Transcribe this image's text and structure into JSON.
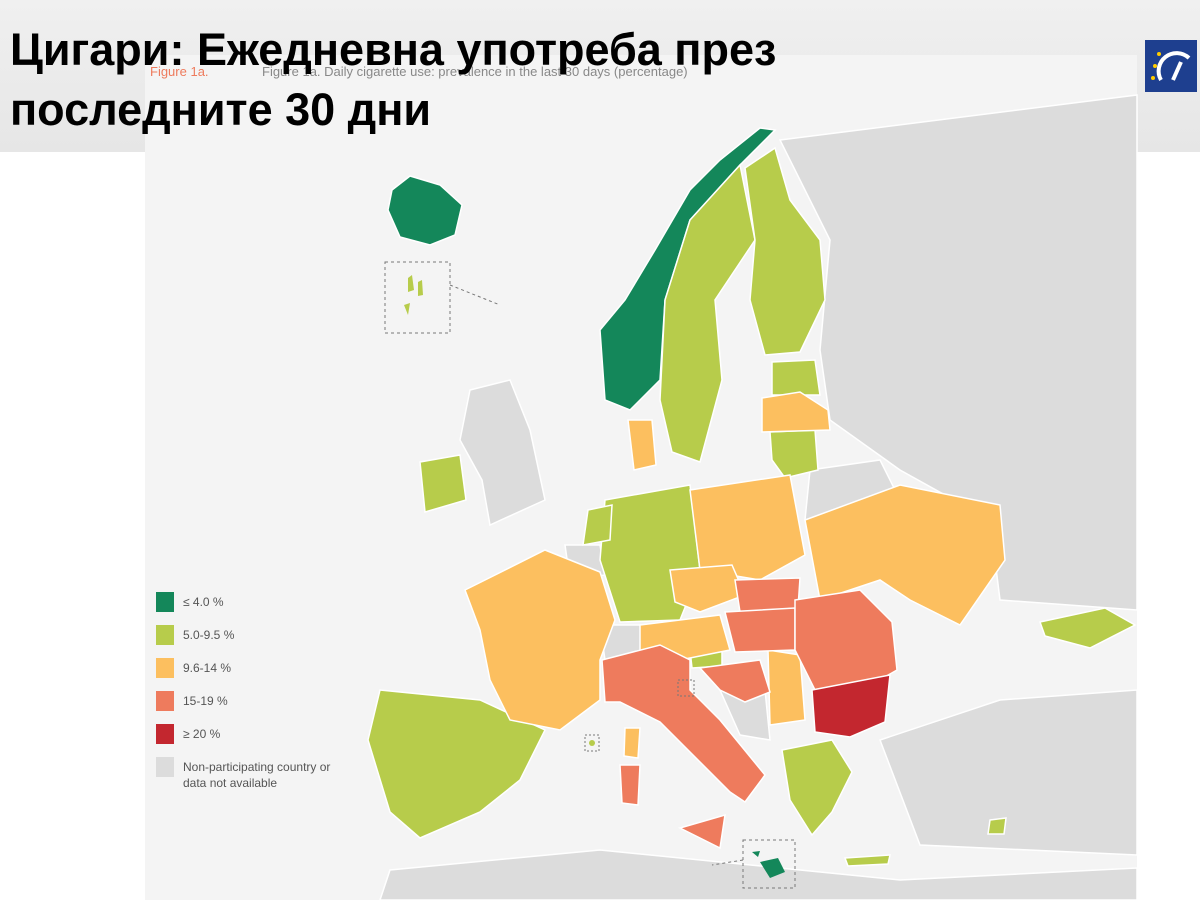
{
  "header": {
    "title_lines": [
      "Цигари: Ежедневна употреба през",
      "последните 30 дни"
    ]
  },
  "figure": {
    "label": "Figure 1a.",
    "caption": "Figure 1a. Daily cigarette use: prevalence in the last 30 days (percentage)"
  },
  "legend": {
    "items": [
      {
        "label": "≤ 4.0 %",
        "color": "#14875a"
      },
      {
        "label": "5.0-9.5 %",
        "color": "#b7cc4b"
      },
      {
        "label": "9.6-14 %",
        "color": "#fcbf5f"
      },
      {
        "label": "15-19 %",
        "color": "#ee7b5d"
      },
      {
        "label": "≥ 20 %",
        "color": "#c3272f"
      },
      {
        "label": [
          "Non-participating country or",
          "data not available"
        ],
        "color": "#dcdcdc"
      }
    ]
  }
}
